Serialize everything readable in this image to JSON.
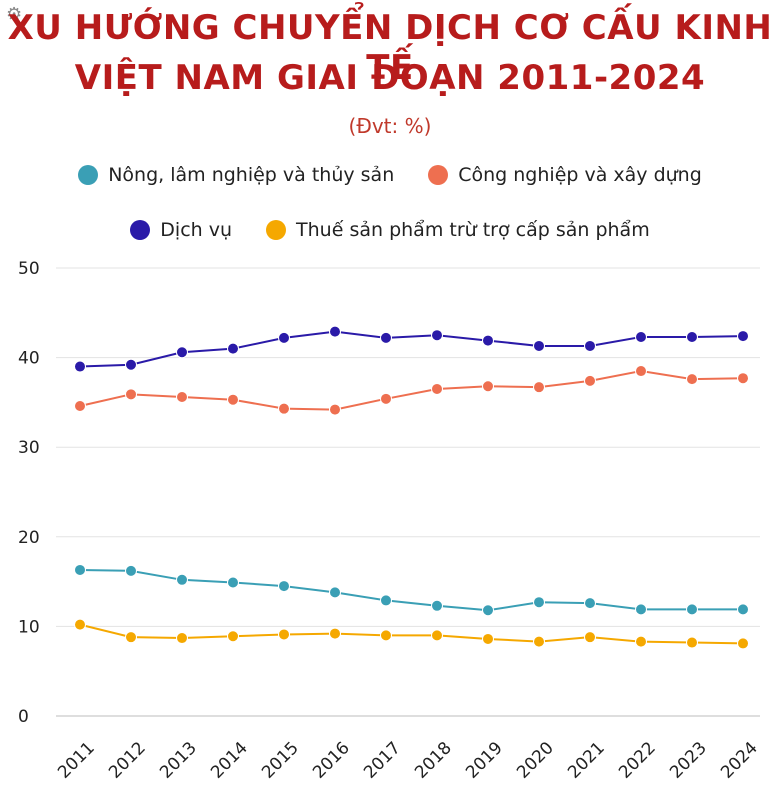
{
  "header": {
    "title_line1": "XU HƯỚNG CHUYỂN DỊCH CƠ CẤU KINH TẾ",
    "title_line2": "VIỆT NAM GIAI ĐOẠN 2011-2024",
    "unit": "(Đvt: %)",
    "gear_icon": "gear-icon"
  },
  "chart_data": {
    "type": "line",
    "title": "XU HƯỚNG CHUYỂN DỊCH CƠ CẤU KINH TẾ VIỆT NAM GIAI ĐOẠN 2011-2024",
    "subtitle": "(Đvt: %)",
    "xlabel": "",
    "ylabel": "",
    "ylim": [
      0,
      50
    ],
    "yticks": [
      0,
      10,
      20,
      30,
      40,
      50
    ],
    "grid": true,
    "legend_position": "top",
    "categories": [
      "2011",
      "2012",
      "2013",
      "2014",
      "2015",
      "2016",
      "2017",
      "2018",
      "2019",
      "2020",
      "2021",
      "2022",
      "2023",
      "2024"
    ],
    "series": [
      {
        "name": "Nông, lâm nghiệp và thủy sản",
        "color": "#3a9fb5",
        "values": [
          16.3,
          16.2,
          15.2,
          14.9,
          14.5,
          13.8,
          12.9,
          12.3,
          11.8,
          12.7,
          12.6,
          11.9,
          11.9,
          11.9
        ]
      },
      {
        "name": "Công nghiệp và xây dựng",
        "color": "#ee6f50",
        "values": [
          34.6,
          35.9,
          35.6,
          35.3,
          34.3,
          34.2,
          35.4,
          36.5,
          36.8,
          36.7,
          37.4,
          38.5,
          37.6,
          37.7
        ]
      },
      {
        "name": "Dịch vụ",
        "color": "#2a1aa8",
        "values": [
          39.0,
          39.2,
          40.6,
          41.0,
          42.2,
          42.9,
          42.2,
          42.5,
          41.9,
          41.3,
          41.3,
          42.3,
          42.3,
          42.4
        ]
      },
      {
        "name": "Thuế sản phẩm trừ trợ cấp sản phẩm",
        "color": "#f5a800",
        "values": [
          10.2,
          8.8,
          8.7,
          8.9,
          9.1,
          9.2,
          9.0,
          9.0,
          8.6,
          8.3,
          8.8,
          8.3,
          8.2,
          8.1
        ]
      }
    ]
  }
}
